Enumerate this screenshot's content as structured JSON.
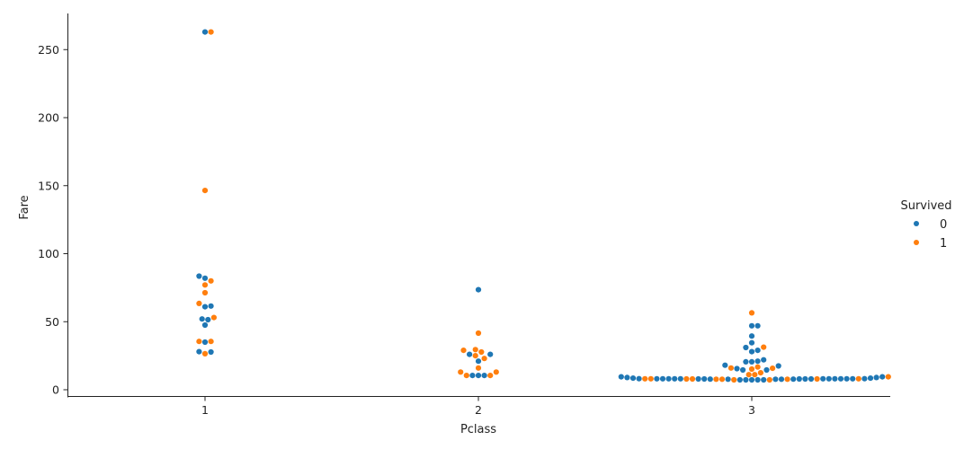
{
  "chart_data": {
    "type": "scatter",
    "subtype": "swarm",
    "xlabel": "Pclass",
    "ylabel": "Fare",
    "categories": [
      "1",
      "2",
      "3"
    ],
    "ylim": [
      -6,
      276
    ],
    "yticks": [
      "0",
      "50",
      "100",
      "150",
      "200",
      "250"
    ],
    "legend": {
      "title": "Survived",
      "placement": "right",
      "entries": [
        "0",
        "1"
      ]
    },
    "grid": false,
    "series": [
      {
        "name": "0",
        "color": "#1f77b4",
        "points": [
          [
            "1",
            263
          ],
          [
            "1",
            83.5
          ],
          [
            "1",
            82
          ],
          [
            "1",
            61.5
          ],
          [
            "1",
            61
          ],
          [
            "1",
            52
          ],
          [
            "1",
            51.5
          ],
          [
            "1",
            47.5
          ],
          [
            "1",
            35
          ],
          [
            "1",
            28
          ],
          [
            "1",
            27.7
          ],
          [
            "2",
            73.5
          ],
          [
            "2",
            26
          ],
          [
            "2",
            26
          ],
          [
            "2",
            21
          ],
          [
            "2",
            10.5
          ],
          [
            "2",
            10.5
          ],
          [
            "2",
            10.5
          ],
          [
            "3",
            47
          ],
          [
            "3",
            47
          ],
          [
            "3",
            39.5
          ],
          [
            "3",
            34.5
          ],
          [
            "3",
            31
          ],
          [
            "3",
            29
          ],
          [
            "3",
            28
          ],
          [
            "3",
            22
          ],
          [
            "3",
            21
          ],
          [
            "3",
            20.5
          ],
          [
            "3",
            20.5
          ],
          [
            "3",
            18
          ],
          [
            "3",
            17.5
          ],
          [
            "3",
            15.5
          ],
          [
            "3",
            14.5
          ],
          [
            "3",
            14.5
          ],
          [
            "3",
            9.5
          ],
          [
            "3",
            9.5
          ],
          [
            "3",
            9
          ],
          [
            "3",
            9
          ],
          [
            "3",
            8.5
          ],
          [
            "3",
            8.5
          ],
          [
            "3",
            8.1
          ],
          [
            "3",
            8.1
          ],
          [
            "3",
            8.05
          ],
          [
            "3",
            8.05
          ],
          [
            "3",
            8.05
          ],
          [
            "3",
            8.05
          ],
          [
            "3",
            8.05
          ],
          [
            "3",
            8.05
          ],
          [
            "3",
            8.05
          ],
          [
            "3",
            8.05
          ],
          [
            "3",
            8.05
          ],
          [
            "3",
            8.05
          ],
          [
            "3",
            8.05
          ],
          [
            "3",
            7.9
          ],
          [
            "3",
            7.9
          ],
          [
            "3",
            7.9
          ],
          [
            "3",
            7.9
          ],
          [
            "3",
            7.9
          ],
          [
            "3",
            7.8
          ],
          [
            "3",
            7.8
          ],
          [
            "3",
            7.75
          ],
          [
            "3",
            7.75
          ],
          [
            "3",
            7.75
          ],
          [
            "3",
            7.25
          ],
          [
            "3",
            7.25
          ],
          [
            "3",
            7.25
          ],
          [
            "3",
            7.25
          ],
          [
            "3",
            7.25
          ]
        ]
      },
      {
        "name": "1",
        "color": "#ff7f0e",
        "points": [
          [
            "1",
            263
          ],
          [
            "1",
            146.5
          ],
          [
            "1",
            80
          ],
          [
            "1",
            77
          ],
          [
            "1",
            71.3
          ],
          [
            "1",
            63.4
          ],
          [
            "1",
            53.1
          ],
          [
            "1",
            35.5
          ],
          [
            "1",
            35.5
          ],
          [
            "1",
            26.5
          ],
          [
            "2",
            41.6
          ],
          [
            "2",
            29
          ],
          [
            "2",
            29.5
          ],
          [
            "2",
            27.7
          ],
          [
            "2",
            25
          ],
          [
            "2",
            23
          ],
          [
            "2",
            16
          ],
          [
            "2",
            13
          ],
          [
            "2",
            13
          ],
          [
            "2",
            10.5
          ],
          [
            "2",
            10.5
          ],
          [
            "3",
            56.5
          ],
          [
            "3",
            31.3
          ],
          [
            "3",
            16.7
          ],
          [
            "3",
            16
          ],
          [
            "3",
            15.8
          ],
          [
            "3",
            15.2
          ],
          [
            "3",
            12.5
          ],
          [
            "3",
            11.1
          ],
          [
            "3",
            11.1
          ],
          [
            "3",
            9.5
          ],
          [
            "3",
            8.05
          ],
          [
            "3",
            8.05
          ],
          [
            "3",
            8.05
          ],
          [
            "3",
            7.9
          ],
          [
            "3",
            7.9
          ],
          [
            "3",
            7.9
          ],
          [
            "3",
            7.75
          ],
          [
            "3",
            7.75
          ],
          [
            "3",
            7.75
          ],
          [
            "3",
            7.25
          ],
          [
            "3",
            7.25
          ]
        ]
      }
    ]
  }
}
